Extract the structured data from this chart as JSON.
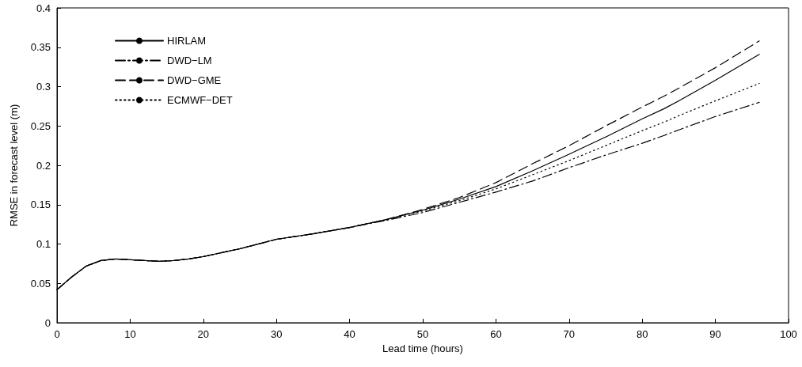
{
  "chart_data": {
    "type": "line",
    "xlabel": "Lead time (hours)",
    "ylabel": "RMSE in forecast level (m)",
    "x": [
      0,
      2,
      4,
      6,
      8,
      10,
      12,
      14,
      16,
      18,
      20,
      25,
      30,
      35,
      40,
      45,
      50,
      55,
      60,
      65,
      70,
      75,
      80,
      83,
      85,
      90,
      96
    ],
    "series": [
      {
        "name": "HIRLAM",
        "color": "#000000",
        "line_style": "solid",
        "values": [
          0.042,
          0.058,
          0.072,
          0.079,
          0.081,
          0.08,
          0.079,
          0.078,
          0.079,
          0.081,
          0.084,
          0.094,
          0.106,
          0.113,
          0.121,
          0.131,
          0.143,
          0.157,
          0.173,
          0.193,
          0.214,
          0.236,
          0.259,
          0.272,
          0.282,
          0.308,
          0.341
        ]
      },
      {
        "name": "DWD−LM",
        "color": "#000000",
        "line_style": "dashdot",
        "values": [
          0.042,
          0.058,
          0.072,
          0.079,
          0.081,
          0.08,
          0.079,
          0.078,
          0.079,
          0.081,
          0.084,
          0.094,
          0.106,
          0.113,
          0.121,
          0.13,
          0.14,
          0.153,
          0.166,
          0.18,
          0.197,
          0.213,
          0.228,
          0.238,
          0.245,
          0.262,
          0.28
        ]
      },
      {
        "name": "DWD−GME",
        "color": "#000000",
        "line_style": "dashed",
        "values": [
          0.042,
          0.058,
          0.072,
          0.079,
          0.081,
          0.08,
          0.079,
          0.078,
          0.079,
          0.081,
          0.084,
          0.094,
          0.106,
          0.113,
          0.121,
          0.131,
          0.144,
          0.159,
          0.178,
          0.202,
          0.225,
          0.25,
          0.274,
          0.288,
          0.298,
          0.324,
          0.358
        ]
      },
      {
        "name": "ECMWF−DET",
        "color": "#000000",
        "line_style": "dotted",
        "values": [
          0.042,
          0.058,
          0.072,
          0.079,
          0.081,
          0.08,
          0.079,
          0.078,
          0.079,
          0.081,
          0.084,
          0.094,
          0.106,
          0.113,
          0.121,
          0.131,
          0.142,
          0.155,
          0.17,
          0.188,
          0.206,
          0.225,
          0.244,
          0.255,
          0.263,
          0.282,
          0.304
        ]
      }
    ],
    "xlim": [
      0,
      100
    ],
    "xticks": [
      0,
      10,
      20,
      30,
      40,
      50,
      60,
      70,
      80,
      90,
      100
    ],
    "ylim": [
      0,
      0.4
    ],
    "yticks": [
      0,
      0.05,
      0.1,
      0.15,
      0.2,
      0.25,
      0.3,
      0.35,
      0.4
    ],
    "grid": false,
    "legend": "top left"
  }
}
